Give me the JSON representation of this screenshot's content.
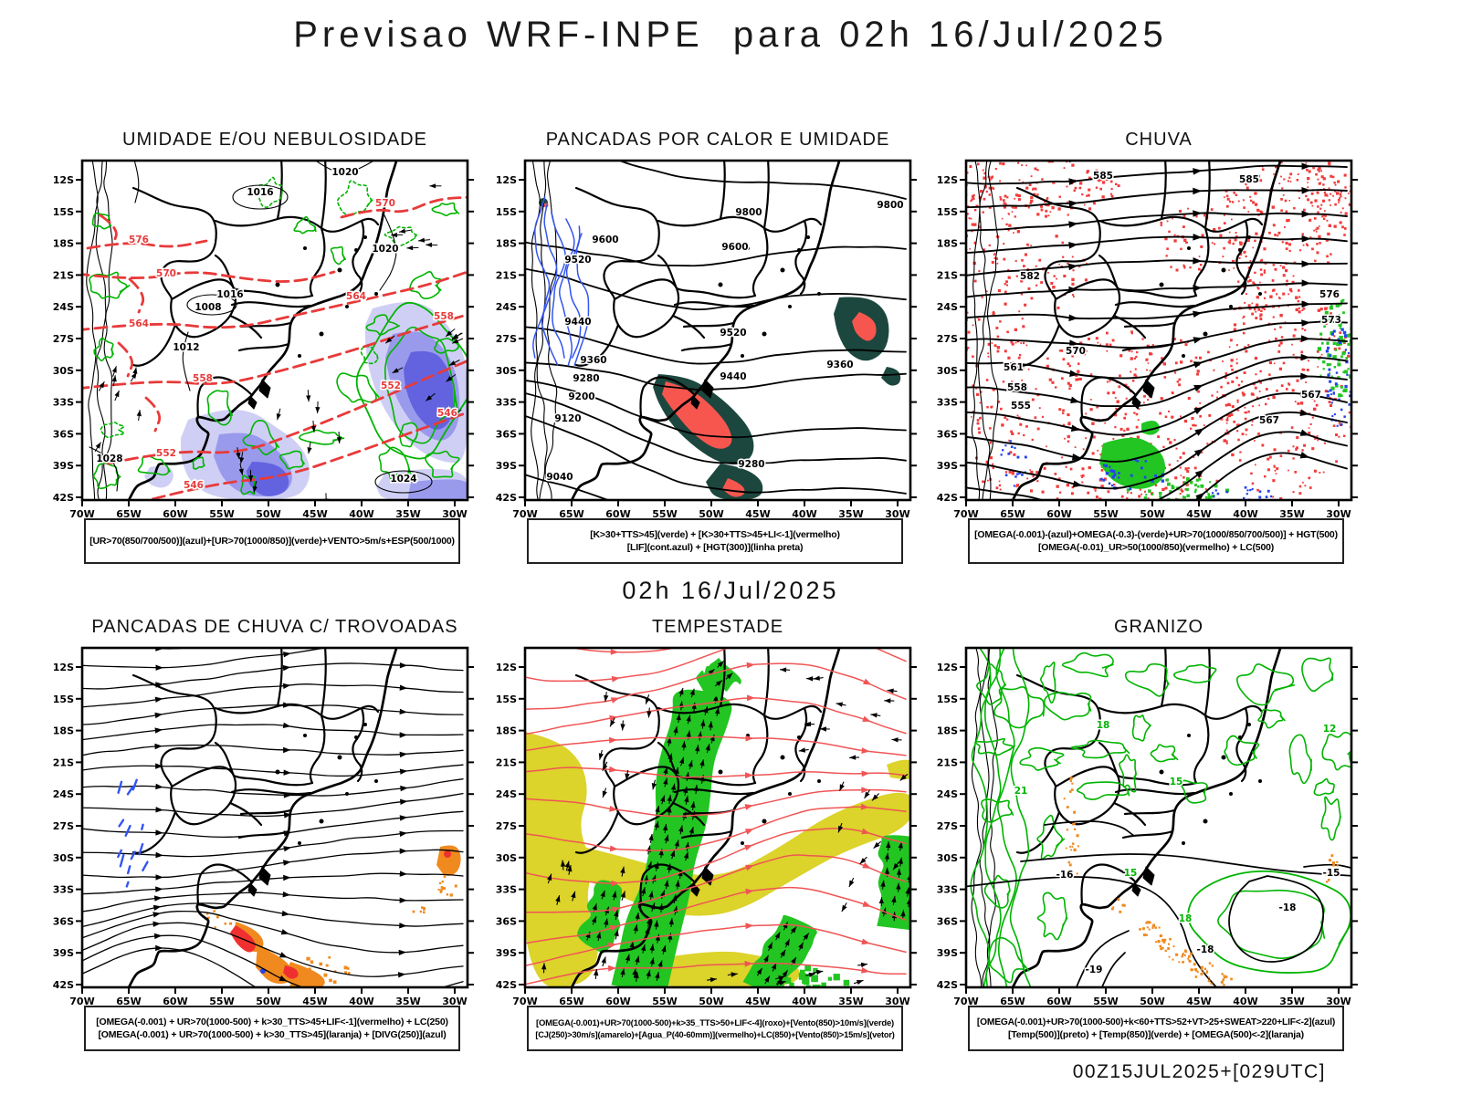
{
  "page": {
    "title": "Previsao WRF-INPE  para 02h 16/Jul/2025",
    "divider": "02h 16/Jul/2025",
    "footer": "00Z15JUL2025+[029UTC]"
  },
  "axes": {
    "lat": [
      "12S",
      "15S",
      "18S",
      "21S",
      "24S",
      "27S",
      "30S",
      "33S",
      "36S",
      "39S",
      "42S"
    ],
    "lon": [
      "70W",
      "65W",
      "60W",
      "55W",
      "50W",
      "45W",
      "40W",
      "35W",
      "30W"
    ]
  },
  "colors": {
    "map_line": "#000000",
    "red_contour": "#e83a3a",
    "green_contour": "#00b400",
    "bright_green": "#22c522",
    "dark_teal": "#1c473e",
    "salmon_red": "#f7564f",
    "speckle_red": "#f23b3b",
    "blue_line": "#3355f0",
    "blue_fill": "#2244ee",
    "shade_light": "#cfcff5",
    "shade_mid": "#9a9aec",
    "shade_dark": "#6363e0",
    "orange": "#f08a1e",
    "core_red": "#f03030",
    "yellow": "#dcd32b",
    "red_stream": "#f05555"
  },
  "panels": [
    {
      "id": "umidade",
      "title": "UMIDADE E/OU NEBULOSIDADE",
      "legend": [
        "[UR>70(850/700/500)](azul)+[UR>70(1000/850)](verde)+VENTO>5m/s+ESP(500/1000)"
      ],
      "contour_labels": {
        "black": [
          "1016",
          "1020",
          "1020",
          "1016",
          "1008",
          "1012",
          "1024",
          "1028"
        ],
        "red": [
          "570",
          "576",
          "570",
          "564",
          "564",
          "558",
          "558",
          "552",
          "552",
          "546",
          "546"
        ]
      }
    },
    {
      "id": "calor",
      "title": "PANCADAS POR CALOR E UMIDADE",
      "legend": [
        "[K>30+TTS>45](verde) + [K>30+TTS>45+LI<-1](vermelho)",
        "[LIF](cont.azul) + [HGT(300)](linha preta)"
      ],
      "contour_labels": {
        "black": [
          "9800",
          "9800",
          "9600",
          "9600",
          "9520",
          "9520",
          "9440",
          "9440",
          "9360",
          "9360",
          "9280",
          "9280",
          "9200",
          "9120",
          "9040"
        ]
      }
    },
    {
      "id": "chuva",
      "title": "CHUVA",
      "legend": [
        "[OMEGA(-0.001)-(azul)+OMEGA(-0.3)-(verde)+UR>70(1000/850/700/500)] + HGT(500)",
        "[OMEGA(-0.01)_UR>50(1000/850)(vermelho) + LC(500)"
      ],
      "contour_labels": {
        "black": [
          "585",
          "585",
          "582",
          "576",
          "573",
          "570",
          "567",
          "567",
          "561",
          "558",
          "555"
        ]
      }
    },
    {
      "id": "trovoadas",
      "title": "PANCADAS DE CHUVA C/ TROVOADAS",
      "legend": [
        "[OMEGA(-0.001) + UR>70(1000-500) + k>30_TTS>45+LIF<-1](vermelho) + LC(250)",
        "[OMEGA(-0.001) + UR>70(1000-500) + k>30_TTS>45](laranja) + [DIVG(250)](azul)"
      ]
    },
    {
      "id": "tempestade",
      "title": "TEMPESTADE",
      "legend": [
        "[OMEGA(-0.001)+UR>70(1000-500)+k>35_TTS>50+LIF<-4](roxo)+[Vento(850)>10m/s](verde)",
        "[CJ(250)>30m/s](amarelo)+[Agua_P(40-60mm)](vermelho)+LC(850)+[Vento(850)>15m/s](vetor)"
      ]
    },
    {
      "id": "granizo",
      "title": "GRANIZO",
      "legend": [
        "[OMEGA(-0.001)+UR>70(1000-500)+k<60+TTS>52+VT>25+SWEAT>220+LIF<-2](azul)",
        "[Temp(500)](preto) + [Temp(850)](verde) + [OMEGA(500)<-2](laranja)"
      ],
      "contour_labels": {
        "black": [
          "-15",
          "-18",
          "-16",
          "-18",
          "-19"
        ],
        "green": [
          "18",
          "15",
          "12",
          "21",
          "15",
          "18"
        ]
      }
    }
  ]
}
